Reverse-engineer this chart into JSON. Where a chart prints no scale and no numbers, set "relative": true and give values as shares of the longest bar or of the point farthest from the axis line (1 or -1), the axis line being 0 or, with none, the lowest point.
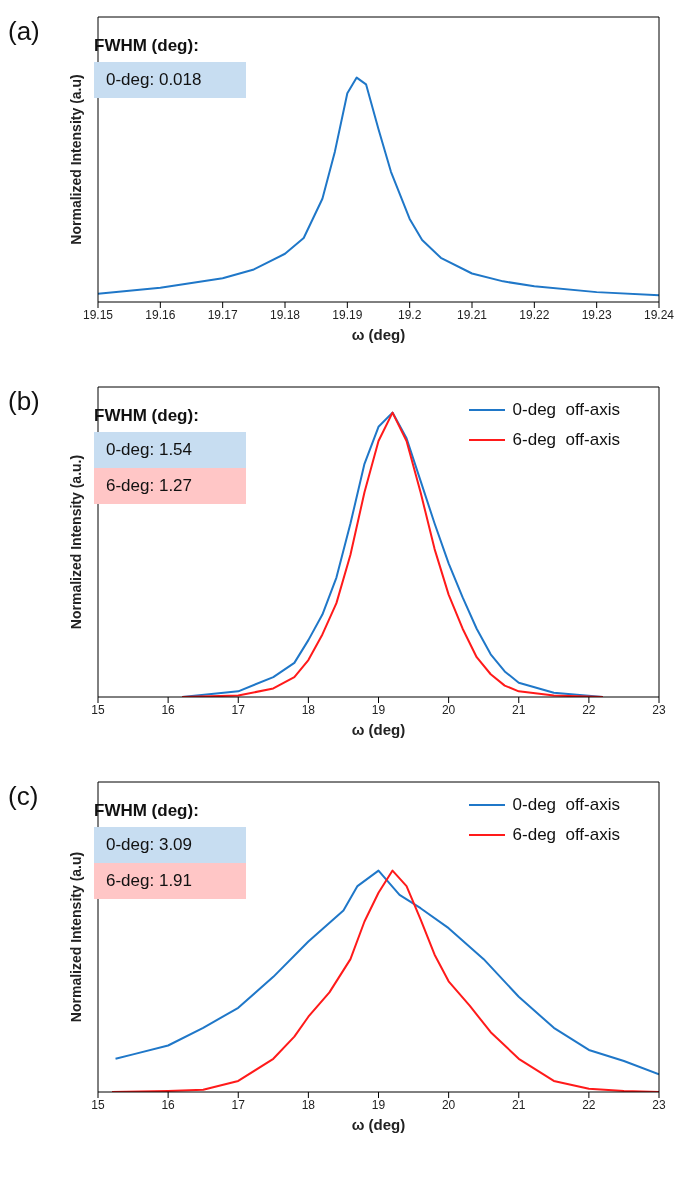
{
  "chart_data": [
    {
      "type": "line",
      "title": "(a)",
      "xlabel": "ω (deg)",
      "ylabel": "Normalized Intensity (a.u)",
      "relative": true,
      "grid": false,
      "legend": false,
      "marker": "none",
      "line_style": "solid",
      "annotations": [
        "FWHM (deg):",
        "0-deg: 0.018"
      ],
      "xlim": [
        19.15,
        19.24
      ],
      "xticks": [
        19.15,
        19.16,
        19.17,
        19.18,
        19.19,
        19.2,
        19.21,
        19.22,
        19.23,
        19.24
      ],
      "series": [
        {
          "color": "#1f77c8",
          "x": [
            19.15,
            19.16,
            19.17,
            19.175,
            19.18,
            19.183,
            19.186,
            19.188,
            19.19,
            19.1915,
            19.193,
            19.195,
            19.197,
            19.2,
            19.202,
            19.205,
            19.21,
            19.215,
            19.22,
            19.23,
            19.24
          ],
          "values": [
            0.037,
            0.063,
            0.106,
            0.145,
            0.215,
            0.285,
            0.46,
            0.67,
            0.93,
            1,
            0.97,
            0.77,
            0.58,
            0.37,
            0.276,
            0.197,
            0.127,
            0.092,
            0.07,
            0.044,
            0.03
          ]
        }
      ]
    },
    {
      "type": "line",
      "title": "(b)",
      "xlabel": "ω (deg)",
      "ylabel": "Normalized Intensity (a.u.)",
      "relative": true,
      "grid": false,
      "legend": "top right",
      "marker": "none",
      "line_style": "solid",
      "annotations": [
        "FWHM (deg):",
        "0-deg: 1.54",
        "6-deg: 1.27"
      ],
      "xlim": [
        15,
        23
      ],
      "xticks": [
        15,
        16,
        17,
        18,
        19,
        20,
        21,
        22,
        23
      ],
      "series": [
        {
          "name": "0-deg  off-axis",
          "color": "#1f77c8",
          "x": [
            16.2,
            17,
            17.5,
            17.8,
            18,
            18.2,
            18.4,
            18.6,
            18.8,
            19,
            19.2,
            19.4,
            19.6,
            19.8,
            20,
            20.2,
            20.4,
            20.6,
            20.8,
            21,
            21.5,
            22.2
          ],
          "values": [
            0,
            0.02,
            0.07,
            0.12,
            0.2,
            0.29,
            0.42,
            0.61,
            0.82,
            0.95,
            1,
            0.91,
            0.76,
            0.61,
            0.47,
            0.35,
            0.24,
            0.15,
            0.09,
            0.05,
            0.015,
            0
          ]
        },
        {
          "name": "6-deg  off-axis",
          "color": "#ff1a1a",
          "x": [
            16.2,
            17,
            17.5,
            17.8,
            18,
            18.2,
            18.4,
            18.6,
            18.8,
            19,
            19.2,
            19.4,
            19.6,
            19.8,
            20,
            20.2,
            20.4,
            20.6,
            20.8,
            21,
            21.5,
            22.2
          ],
          "values": [
            0,
            0.005,
            0.03,
            0.07,
            0.13,
            0.22,
            0.33,
            0.5,
            0.72,
            0.9,
            1,
            0.9,
            0.72,
            0.52,
            0.36,
            0.24,
            0.14,
            0.08,
            0.04,
            0.02,
            0.005,
            0
          ]
        }
      ]
    },
    {
      "type": "line",
      "title": "(c)",
      "xlabel": "ω (deg)",
      "ylabel": "Normalized Intensity (a.u)",
      "relative": true,
      "grid": false,
      "legend": "top right",
      "marker": "none",
      "line_style": "solid",
      "annotations": [
        "FWHM (deg):",
        "0-deg: 3.09",
        "6-deg: 1.91"
      ],
      "xlim": [
        15,
        23
      ],
      "xticks": [
        15,
        16,
        17,
        18,
        19,
        20,
        21,
        22,
        23
      ],
      "series": [
        {
          "name": "0-deg  off-axis",
          "color": "#1f77c8",
          "x": [
            15.25,
            15.5,
            16,
            16.5,
            17,
            17.5,
            18,
            18.5,
            18.7,
            19,
            19.3,
            19.6,
            20,
            20.5,
            21,
            21.5,
            22,
            22.5,
            23
          ],
          "values": [
            0.15,
            0.17,
            0.21,
            0.29,
            0.38,
            0.52,
            0.68,
            0.82,
            0.93,
            1,
            0.89,
            0.83,
            0.74,
            0.6,
            0.43,
            0.29,
            0.19,
            0.14,
            0.08
          ]
        },
        {
          "name": "6-deg  off-axis",
          "color": "#ff1a1a",
          "x": [
            15.2,
            16,
            16.5,
            17,
            17.5,
            17.8,
            18,
            18.3,
            18.6,
            18.8,
            19,
            19.2,
            19.4,
            19.6,
            19.8,
            20,
            20.3,
            20.6,
            21,
            21.5,
            22,
            22.5,
            23
          ],
          "values": [
            0,
            0.005,
            0.01,
            0.05,
            0.15,
            0.25,
            0.34,
            0.45,
            0.6,
            0.77,
            0.9,
            1,
            0.93,
            0.78,
            0.62,
            0.5,
            0.39,
            0.27,
            0.15,
            0.05,
            0.015,
            0.005,
            0
          ]
        }
      ]
    }
  ]
}
